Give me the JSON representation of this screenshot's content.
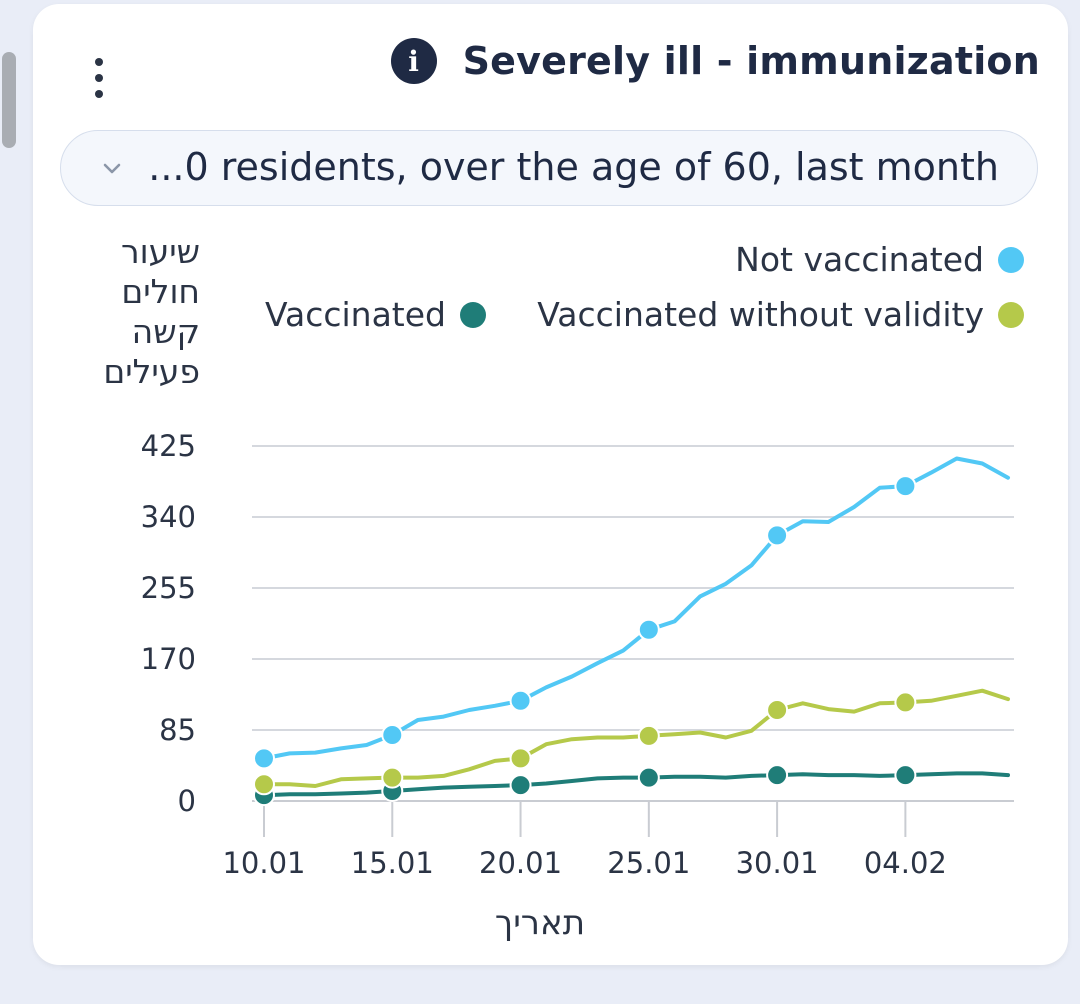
{
  "card": {
    "title": "Severely ill - immunization",
    "info_icon": "info-icon",
    "menu_icon": "kebab-menu-icon"
  },
  "filter": {
    "selected": "...0 residents, over the age of 60, last month",
    "icon": "chevron-down-icon"
  },
  "colors": {
    "not_vaccinated": "#52c8f5",
    "vaccinated_without_validity": "#b5c94a",
    "vaccinated": "#1f7d78",
    "grid": "#d5d8de",
    "axis": "#c9ccd2"
  },
  "chart_data": {
    "type": "line",
    "ylabel": "שיעור חולים קשה פעילים",
    "xlabel": "תאריך",
    "ylim": [
      0,
      425
    ],
    "yticks": [
      0,
      85,
      170,
      255,
      340,
      425
    ],
    "x_range": [
      10,
      39
    ],
    "xticks": [
      {
        "x": 10,
        "label": "10.01"
      },
      {
        "x": 15,
        "label": "15.01"
      },
      {
        "x": 20,
        "label": "20.01"
      },
      {
        "x": 25,
        "label": "25.01"
      },
      {
        "x": 30,
        "label": "30.01"
      },
      {
        "x": 35,
        "label": "04.02"
      }
    ],
    "marker_x": [
      10,
      15,
      20,
      25,
      30,
      35
    ],
    "legend": [
      {
        "key": "not_vaccinated",
        "label": "Not vaccinated"
      },
      {
        "key": "vaccinated_without_validity",
        "label": "Vaccinated without validity"
      },
      {
        "key": "vaccinated",
        "label": "Vaccinated"
      }
    ],
    "x": [
      10,
      11,
      12,
      13,
      14,
      15,
      16,
      17,
      18,
      19,
      20,
      21,
      22,
      23,
      24,
      25,
      26,
      27,
      28,
      29,
      30,
      31,
      32,
      33,
      34,
      35,
      36,
      37,
      38,
      39
    ],
    "series": [
      {
        "key": "not_vaccinated",
        "name": "Not vaccinated",
        "values": [
          51,
          57,
          58,
          63,
          67,
          79,
          97,
          101,
          109,
          114,
          120,
          136,
          149,
          165,
          180,
          205,
          215,
          245,
          260,
          282,
          318,
          335,
          334,
          352,
          375,
          377,
          393,
          410,
          404,
          387
        ]
      },
      {
        "key": "vaccinated_without_validity",
        "name": "Vaccinated without validity",
        "values": [
          20,
          20,
          18,
          26,
          27,
          28,
          28,
          30,
          38,
          48,
          51,
          68,
          74,
          76,
          76,
          78,
          80,
          82,
          76,
          84,
          109,
          117,
          110,
          107,
          117,
          118,
          120,
          126,
          132,
          122
        ]
      },
      {
        "key": "vaccinated",
        "name": "Vaccinated",
        "values": [
          7,
          8,
          8,
          9,
          10,
          12,
          14,
          16,
          17,
          18,
          19,
          21,
          24,
          27,
          28,
          28,
          29,
          29,
          28,
          30,
          31,
          32,
          31,
          31,
          30,
          31,
          32,
          33,
          33,
          31
        ]
      }
    ]
  }
}
